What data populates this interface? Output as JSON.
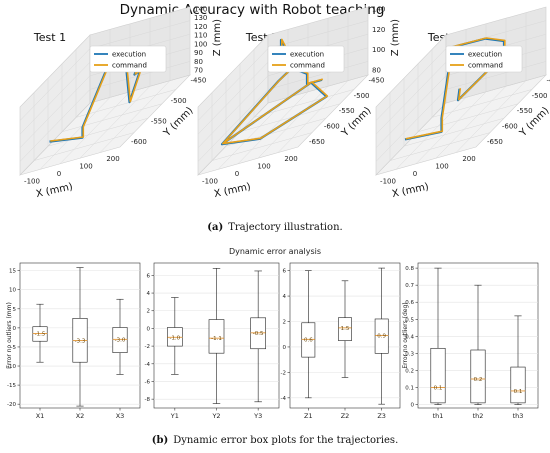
{
  "figure": {
    "title": "Dynamic Accuracy with Robot teaching",
    "caption_a_label": "(a)",
    "caption_a_text": "Trajectory illustration.",
    "caption_b_label": "(b)",
    "caption_b_text": "Dynamic error box plots for the trajectories.",
    "colors": {
      "execution": "#1f77b4",
      "command": "#e6a01a"
    }
  },
  "chart_data": [
    {
      "type": "line",
      "panel": "3d",
      "title": "Test 1",
      "series": [
        {
          "name": "execution"
        },
        {
          "name": "command"
        }
      ],
      "x": {
        "label": "X (mm)",
        "ticks": [
          "-100",
          "0",
          "100",
          "200"
        ]
      },
      "y": {
        "label": "Y (mm)",
        "ticks": [
          "-450",
          "-500",
          "-550",
          "-600"
        ]
      },
      "z": {
        "label": "Z (mm)",
        "ticks": [
          "140",
          "130",
          "120",
          "110",
          "100",
          "90",
          "80",
          "70"
        ]
      },
      "grid": true,
      "legend": "top-right"
    },
    {
      "type": "line",
      "panel": "3d",
      "title": "Test 2",
      "series": [
        {
          "name": "execution"
        },
        {
          "name": "command"
        }
      ],
      "x": {
        "label": "X (mm)",
        "ticks": [
          "-100",
          "0",
          "100",
          "200"
        ]
      },
      "y": {
        "label": "Y (mm)",
        "ticks": [
          "-450",
          "-500",
          "-550",
          "-600",
          "-650"
        ]
      },
      "z": {
        "label": "Z (mm)",
        "ticks": [
          "140",
          "120",
          "100",
          "80"
        ]
      },
      "grid": true,
      "legend": "top-right"
    },
    {
      "type": "line",
      "panel": "3d",
      "title": "Test 3",
      "series": [
        {
          "name": "execution"
        },
        {
          "name": "command"
        }
      ],
      "x": {
        "label": "X (mm)",
        "ticks": [
          "-100",
          "0",
          "100",
          "200"
        ]
      },
      "y": {
        "label": "Y (mm)",
        "ticks": [
          "-450",
          "-500",
          "-550",
          "-600",
          "-650"
        ]
      },
      "z": {
        "label": "Z (mm)",
        "ticks": [
          "140",
          "120",
          "100",
          "80",
          "60",
          "40"
        ]
      },
      "grid": true,
      "legend": "top-right"
    },
    {
      "type": "box",
      "suptitle": "Dynamic error analysis",
      "ylabel": "Error no outliers (mm)",
      "ylim": [
        -21,
        17
      ],
      "yticks": [
        15,
        10,
        5,
        0,
        -5,
        -10,
        -15,
        -20
      ],
      "categories": [
        "X1",
        "X2",
        "X3"
      ],
      "boxes": [
        {
          "min": -9,
          "q1": -3.5,
          "median": -1.5,
          "q3": 0.3,
          "max": 6.2,
          "label": "-1.5"
        },
        {
          "min": -20.5,
          "q1": -9,
          "median": -3.3,
          "q3": 2.5,
          "max": 15.8,
          "label": "-3.3"
        },
        {
          "min": -12.2,
          "q1": -6.5,
          "median": -3.0,
          "q3": 0.1,
          "max": 7.5,
          "label": "-3.0"
        }
      ],
      "grid": true
    },
    {
      "type": "box",
      "ylim": [
        -9,
        7.4
      ],
      "yticks": [
        6,
        4,
        2,
        0,
        -2,
        -4,
        -6,
        -8
      ],
      "categories": [
        "Y1",
        "Y2",
        "Y3"
      ],
      "boxes": [
        {
          "min": -5.2,
          "q1": -2.0,
          "median": -1.0,
          "q3": 0.1,
          "max": 3.5,
          "label": "-1.0"
        },
        {
          "min": -8.5,
          "q1": -2.8,
          "median": -1.1,
          "q3": 1.0,
          "max": 6.8,
          "label": "-1.1"
        },
        {
          "min": -8.3,
          "q1": -2.3,
          "median": -0.5,
          "q3": 1.2,
          "max": 6.5,
          "label": "-0.5"
        }
      ],
      "grid": true
    },
    {
      "type": "box",
      "ylim": [
        -4.8,
        6.6
      ],
      "yticks": [
        6,
        4,
        2,
        0,
        -2,
        -4
      ],
      "categories": [
        "Z1",
        "Z2",
        "Z3"
      ],
      "boxes": [
        {
          "min": -4.0,
          "q1": -0.8,
          "median": 0.6,
          "q3": 1.9,
          "max": 6.0,
          "label": "0.6"
        },
        {
          "min": -2.4,
          "q1": 0.5,
          "median": 1.5,
          "q3": 2.3,
          "max": 5.2,
          "label": "1.5"
        },
        {
          "min": -4.5,
          "q1": -0.5,
          "median": 0.9,
          "q3": 2.2,
          "max": 6.2,
          "label": "0.9"
        }
      ],
      "grid": true
    },
    {
      "type": "box",
      "ylabel": "Error no outliers (deg)",
      "ylim": [
        -0.02,
        0.83
      ],
      "yticks": [
        0.8,
        0.7,
        0.6,
        0.5,
        0.4,
        0.3,
        0.2,
        0.1,
        0.0
      ],
      "categories": [
        "th1",
        "th2",
        "th3"
      ],
      "boxes": [
        {
          "min": 0.0,
          "q1": 0.01,
          "median": 0.1,
          "q3": 0.33,
          "max": 0.8,
          "label": "0.1"
        },
        {
          "min": 0.0,
          "q1": 0.01,
          "median": 0.15,
          "q3": 0.32,
          "max": 0.7,
          "label": "0.2"
        },
        {
          "min": 0.0,
          "q1": 0.01,
          "median": 0.08,
          "q3": 0.22,
          "max": 0.52,
          "label": "0.1"
        }
      ],
      "grid": true
    }
  ]
}
